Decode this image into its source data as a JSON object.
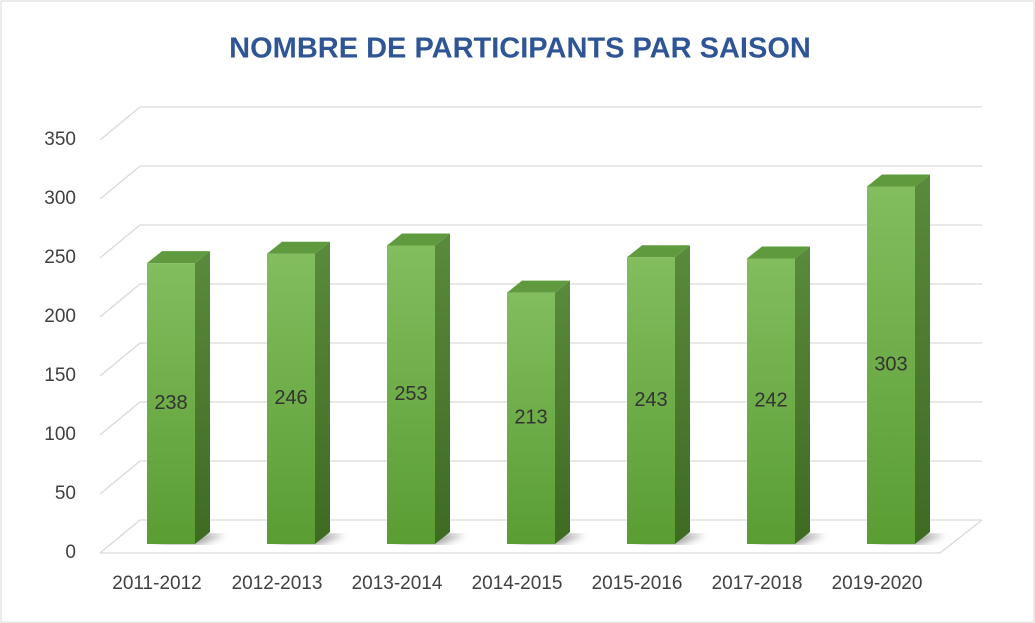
{
  "chart_data": {
    "type": "bar3d",
    "title": "NOMBRE DE PARTICIPANTS PAR SAISON",
    "categories": [
      "2011-2012",
      "2012-2013",
      "2013-2014",
      "2014-2015",
      "2015-2016",
      "2017-2018",
      "2019-2020"
    ],
    "values": [
      238,
      246,
      253,
      213,
      243,
      242,
      303
    ],
    "color": "#70ad47",
    "ylim": [
      0,
      350
    ],
    "yticks": [
      0,
      50,
      100,
      150,
      200,
      250,
      300,
      350
    ],
    "grid": true
  }
}
